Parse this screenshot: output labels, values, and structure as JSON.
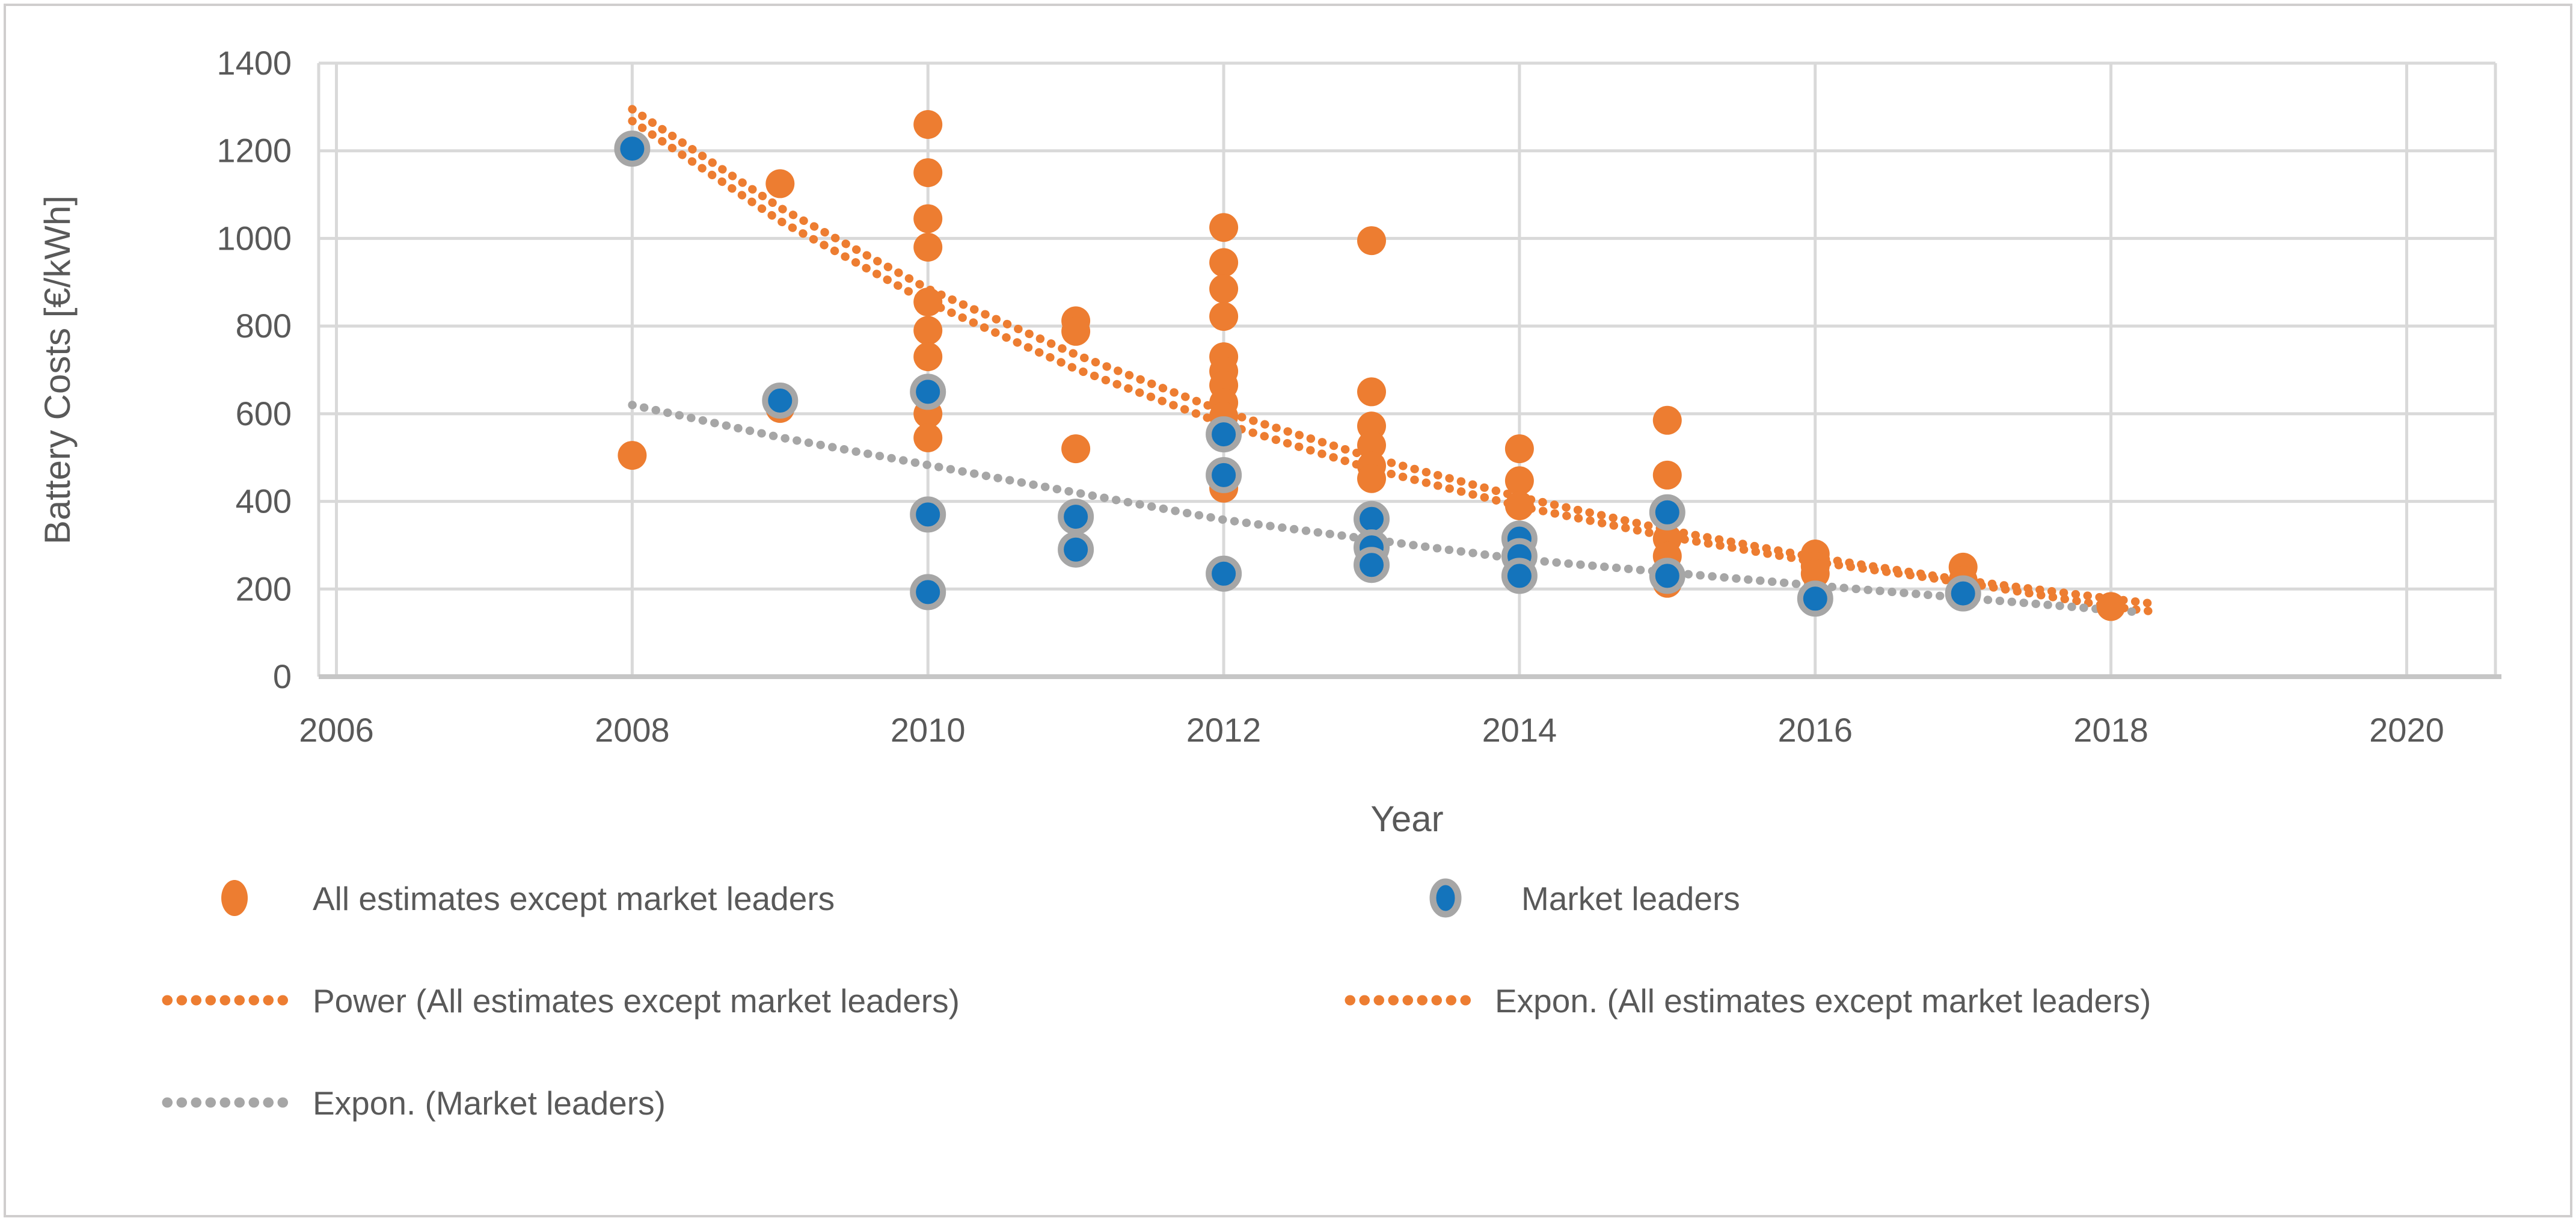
{
  "figure": {
    "background": "#ffffff",
    "border_color": "#D0CECE"
  },
  "colors": {
    "accent_orange": "#ED7D31",
    "accent_blue": "#1474BC",
    "marker_ring_gray": "#A6A6A6",
    "trend_gray": "#A6A6A6",
    "gridline": "#D9D9D9",
    "axis_line": "#C6C6C6",
    "text_gray": "#595959"
  },
  "chart_data": {
    "type": "scatter",
    "title": "",
    "xlabel": "Year",
    "ylabel": "Battery Costs [€/kWh]",
    "xlim": [
      2005.88,
      2020.6
    ],
    "ylim": [
      0,
      1400
    ],
    "x_ticks": [
      2006,
      2008,
      2010,
      2012,
      2014,
      2016,
      2018,
      2020
    ],
    "y_ticks": [
      0,
      200,
      400,
      600,
      800,
      1000,
      1200,
      1400
    ],
    "grid": true,
    "legend_position": "bottom",
    "series": [
      {
        "name": "All estimates except market leaders",
        "kind": "scatter",
        "color": "#ED7D31",
        "points": [
          [
            2008,
            505
          ],
          [
            2009,
            1125
          ],
          [
            2009,
            612
          ],
          [
            2010,
            1260
          ],
          [
            2010,
            1150
          ],
          [
            2010,
            1045
          ],
          [
            2010,
            980
          ],
          [
            2010,
            855
          ],
          [
            2010,
            790
          ],
          [
            2010,
            730
          ],
          [
            2010,
            600
          ],
          [
            2010,
            545
          ],
          [
            2011,
            812
          ],
          [
            2011,
            788
          ],
          [
            2011,
            520
          ],
          [
            2012,
            1025
          ],
          [
            2012,
            945
          ],
          [
            2012,
            885
          ],
          [
            2012,
            822
          ],
          [
            2012,
            730
          ],
          [
            2012,
            697
          ],
          [
            2012,
            665
          ],
          [
            2012,
            625
          ],
          [
            2012,
            594
          ],
          [
            2012,
            430
          ],
          [
            2013,
            995
          ],
          [
            2013,
            650
          ],
          [
            2013,
            572
          ],
          [
            2013,
            528
          ],
          [
            2013,
            481
          ],
          [
            2013,
            452
          ],
          [
            2013,
            270
          ],
          [
            2014,
            520
          ],
          [
            2014,
            447
          ],
          [
            2014,
            390
          ],
          [
            2015,
            585
          ],
          [
            2015,
            460
          ],
          [
            2015,
            315
          ],
          [
            2015,
            275
          ],
          [
            2015,
            213
          ],
          [
            2016,
            280
          ],
          [
            2016,
            252
          ],
          [
            2016,
            235
          ],
          [
            2017,
            250
          ],
          [
            2017,
            220
          ],
          [
            2018,
            160
          ]
        ]
      },
      {
        "name": "Market leaders",
        "kind": "scatter-ringed",
        "color": "#1474BC",
        "ring_color": "#A6A6A6",
        "points": [
          [
            2008,
            1205
          ],
          [
            2009,
            630
          ],
          [
            2010,
            650
          ],
          [
            2010,
            370
          ],
          [
            2010,
            193
          ],
          [
            2011,
            365
          ],
          [
            2011,
            290
          ],
          [
            2012,
            553
          ],
          [
            2012,
            460
          ],
          [
            2012,
            235
          ],
          [
            2013,
            360
          ],
          [
            2013,
            295
          ],
          [
            2013,
            255
          ],
          [
            2014,
            315
          ],
          [
            2014,
            275
          ],
          [
            2014,
            230
          ],
          [
            2015,
            375
          ],
          [
            2015,
            230
          ],
          [
            2016,
            178
          ],
          [
            2017,
            190
          ]
        ]
      },
      {
        "name": "Power (All estimates except market leaders)",
        "kind": "trend-dotted",
        "color": "#ED7D31",
        "points": [
          [
            2008,
            1295
          ],
          [
            2009,
            1070
          ],
          [
            2010,
            885
          ],
          [
            2011,
            735
          ],
          [
            2012,
            605
          ],
          [
            2013,
            500
          ],
          [
            2014,
            410
          ],
          [
            2015,
            335
          ],
          [
            2016,
            272
          ],
          [
            2017,
            220
          ],
          [
            2018,
            178
          ],
          [
            2018.3,
            166
          ]
        ]
      },
      {
        "name": "Expon. (All estimates except market leaders)",
        "kind": "trend-dotted",
        "color": "#ED7D31",
        "points": [
          [
            2008,
            1268
          ],
          [
            2009,
            1040
          ],
          [
            2010,
            855
          ],
          [
            2011,
            702
          ],
          [
            2012,
            577
          ],
          [
            2013,
            474
          ],
          [
            2014,
            389
          ],
          [
            2015,
            320
          ],
          [
            2016,
            262
          ],
          [
            2017,
            215
          ],
          [
            2018,
            160
          ],
          [
            2018.3,
            148
          ]
        ]
      },
      {
        "name": "Expon. (Market leaders)",
        "kind": "trend-dotted",
        "color": "#A6A6A6",
        "points": [
          [
            2008,
            620
          ],
          [
            2009,
            546
          ],
          [
            2010,
            483
          ],
          [
            2011,
            420
          ],
          [
            2012,
            358
          ],
          [
            2013,
            313
          ],
          [
            2014,
            268
          ],
          [
            2015,
            238
          ],
          [
            2016,
            208
          ],
          [
            2017,
            180
          ],
          [
            2018,
            152
          ],
          [
            2018.2,
            147
          ]
        ]
      }
    ]
  },
  "legend": {
    "row1_left_label": "All estimates except market leaders",
    "row1_right_label": "Market leaders",
    "row2_left_label": "Power (All estimates except market leaders)",
    "row2_right_label": "Expon. (All estimates except market leaders)",
    "row3_left_label": "Expon. (Market leaders)"
  }
}
